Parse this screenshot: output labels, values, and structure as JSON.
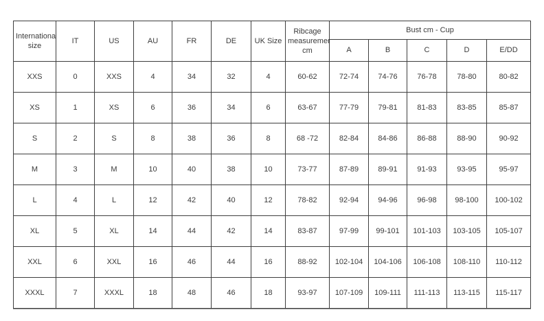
{
  "table": {
    "group_header": "Bust cm - Cup",
    "columns": [
      "International size",
      "IT",
      "US",
      "AU",
      "FR",
      "DE",
      "UK Size",
      "Ribcage measurements cm"
    ],
    "cup_columns": [
      "A",
      "B",
      "C",
      "D",
      "E/DD"
    ],
    "rows": [
      [
        "XXS",
        "0",
        "XXS",
        "4",
        "34",
        "32",
        "4",
        "60-62",
        "72-74",
        "74-76",
        "76-78",
        "78-80",
        "80-82"
      ],
      [
        "XS",
        "1",
        "XS",
        "6",
        "36",
        "34",
        "6",
        "63-67",
        "77-79",
        "79-81",
        "81-83",
        "83-85",
        "85-87"
      ],
      [
        "S",
        "2",
        "S",
        "8",
        "38",
        "36",
        "8",
        "68 -72",
        "82-84",
        "84-86",
        "86-88",
        "88-90",
        "90-92"
      ],
      [
        "M",
        "3",
        "M",
        "10",
        "40",
        "38",
        "10",
        "73-77",
        "87-89",
        "89-91",
        "91-93",
        "93-95",
        "95-97"
      ],
      [
        "L",
        "4",
        "L",
        "12",
        "42",
        "40",
        "12",
        "78-82",
        "92-94",
        "94-96",
        "96-98",
        "98-100",
        "100-102"
      ],
      [
        "XL",
        "5",
        "XL",
        "14",
        "44",
        "42",
        "14",
        "83-87",
        "97-99",
        "99-101",
        "101-103",
        "103-105",
        "105-107"
      ],
      [
        "XXL",
        "6",
        "XXL",
        "16",
        "46",
        "44",
        "16",
        "88-92",
        "102-104",
        "104-106",
        "106-108",
        "108-110",
        "110-112"
      ],
      [
        "XXXL",
        "7",
        "XXXL",
        "18",
        "48",
        "46",
        "18",
        "93-97",
        "107-109",
        "109-111",
        "111-113",
        "113-115",
        "115-117"
      ]
    ],
    "colors": {
      "border": "#3d3d3d",
      "text": "#3a3a3a",
      "background": "#ffffff"
    }
  }
}
